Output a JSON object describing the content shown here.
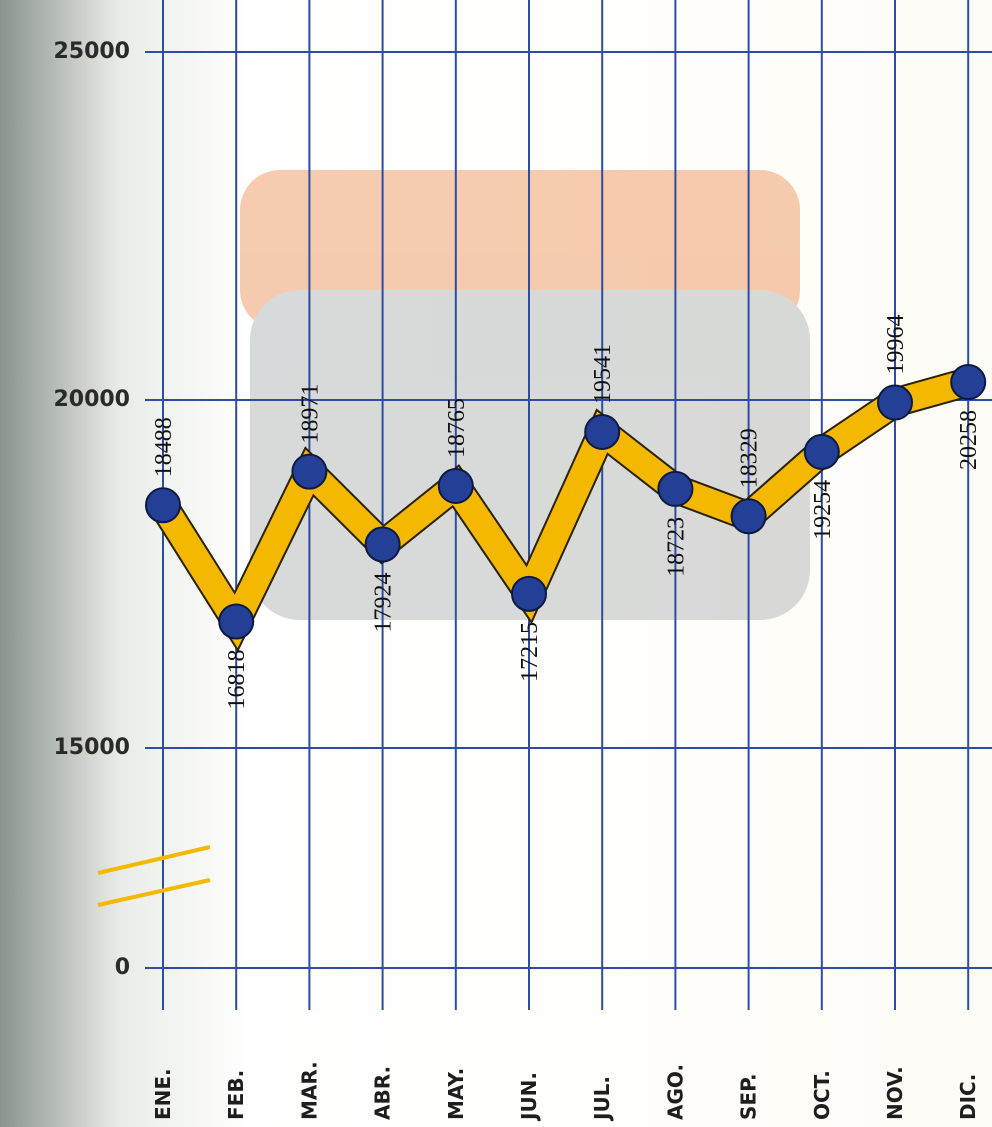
{
  "chart_data": {
    "type": "line",
    "categories": [
      "ENE.",
      "FEB.",
      "MAR.",
      "ABR.",
      "MAY.",
      "JUN.",
      "JUL.",
      "AGO.",
      "SEP.",
      "OCT.",
      "NOV.",
      "DIC."
    ],
    "values": [
      18488,
      16818,
      18971,
      17924,
      18765,
      17215,
      19541,
      18723,
      18329,
      19254,
      19964,
      20258
    ],
    "color": "#f5b800",
    "marker_color": "#243f96",
    "grid_color": "#2e4da0",
    "ylim": [
      0,
      25000
    ],
    "yticks": [
      0,
      15000,
      20000,
      25000
    ],
    "axis_break": true,
    "grid": true
  }
}
